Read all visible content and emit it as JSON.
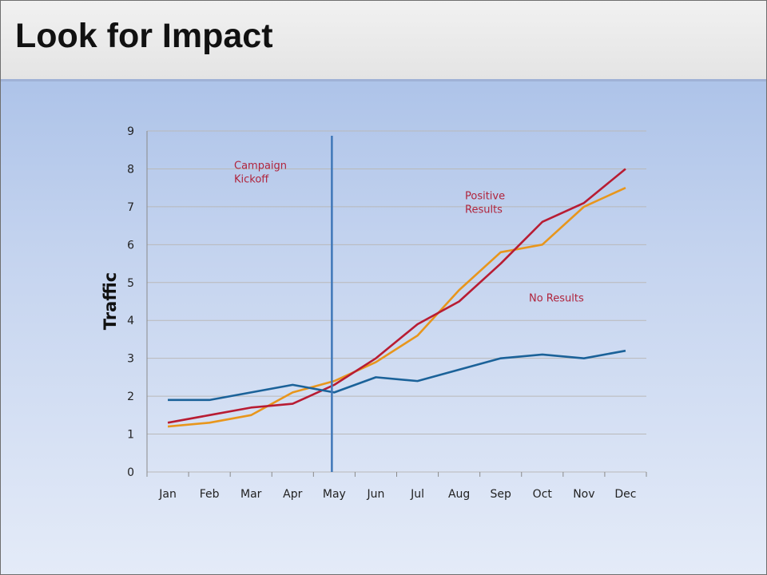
{
  "slide": {
    "title": "Look for Impact"
  },
  "colors": {
    "campaign_line": "#3f77b8",
    "annotation": "#b0243c",
    "grid": "#b9b9b9"
  },
  "chart_data": {
    "type": "line",
    "title": "",
    "xlabel": "",
    "ylabel": "Traffic",
    "categories": [
      "Jan",
      "Feb",
      "Mar",
      "Apr",
      "May",
      "Jun",
      "Jul",
      "Aug",
      "Sep",
      "Oct",
      "Nov",
      "Dec"
    ],
    "ylim": [
      0,
      9
    ],
    "yticks": [
      0,
      1,
      2,
      3,
      4,
      5,
      6,
      7,
      8,
      9
    ],
    "grid": true,
    "legend": "none",
    "series": [
      {
        "color": "#e8961c",
        "values": [
          1.2,
          1.3,
          1.5,
          2.1,
          2.4,
          2.9,
          3.6,
          4.8,
          5.8,
          6.0,
          7.0,
          7.5
        ]
      },
      {
        "color": "#b81c33",
        "values": [
          1.3,
          1.5,
          1.7,
          1.8,
          2.3,
          3.0,
          3.9,
          4.5,
          5.5,
          6.6,
          7.1,
          8.0
        ]
      },
      {
        "color": "#1b6299",
        "values": [
          1.9,
          1.9,
          2.1,
          2.3,
          2.1,
          2.5,
          2.4,
          2.7,
          3.0,
          3.1,
          3.0,
          3.2
        ]
      }
    ],
    "annotations": [
      {
        "lines": [
          "Campaign",
          "Kickoff"
        ],
        "x": "Apr",
        "y": 8.0
      },
      {
        "lines": [
          "Positive",
          "Results"
        ],
        "x": "Aug",
        "y": 7.2
      },
      {
        "lines": [
          "No Results"
        ],
        "x": "Oct",
        "y": 4.5
      }
    ],
    "marker_line": {
      "x": "May"
    }
  }
}
